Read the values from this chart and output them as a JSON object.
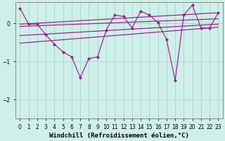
{
  "background_color": "#cef0e8",
  "line_color": "#9b1b8e",
  "grid_color": "#aad8cc",
  "xlabel": "Windchill (Refroidissement éolien,°C)",
  "xlabel_fontsize": 6.5,
  "tick_fontsize": 5.5,
  "ylim": [
    -2.5,
    0.55
  ],
  "xlim": [
    -0.5,
    23.5
  ],
  "yticks": [
    0,
    -1,
    -2
  ],
  "xticks": [
    0,
    1,
    2,
    3,
    4,
    5,
    6,
    7,
    8,
    9,
    10,
    11,
    12,
    13,
    14,
    15,
    16,
    17,
    18,
    19,
    20,
    21,
    22,
    23
  ],
  "series": [
    {
      "x": [
        0,
        1,
        2,
        3,
        4,
        5,
        6,
        7,
        8,
        9,
        10,
        11,
        12,
        13,
        14,
        15,
        16,
        17,
        18,
        19,
        20,
        21,
        22,
        23
      ],
      "y": [
        0.4,
        -0.02,
        -0.02,
        -0.3,
        -0.55,
        -0.75,
        -0.88,
        -1.42,
        -0.92,
        -0.88,
        -0.18,
        0.22,
        0.18,
        -0.12,
        0.32,
        0.22,
        0.02,
        -0.42,
        -1.5,
        0.22,
        0.48,
        -0.12,
        -0.12,
        0.28
      ]
    },
    {
      "x": [
        0,
        23
      ],
      "y": [
        -0.02,
        0.28
      ]
    },
    {
      "x": [
        0,
        23
      ],
      "y": [
        -0.08,
        0.12
      ]
    },
    {
      "x": [
        0,
        23
      ],
      "y": [
        -0.32,
        -0.02
      ]
    },
    {
      "x": [
        0,
        23
      ],
      "y": [
        -0.52,
        -0.1
      ]
    }
  ]
}
